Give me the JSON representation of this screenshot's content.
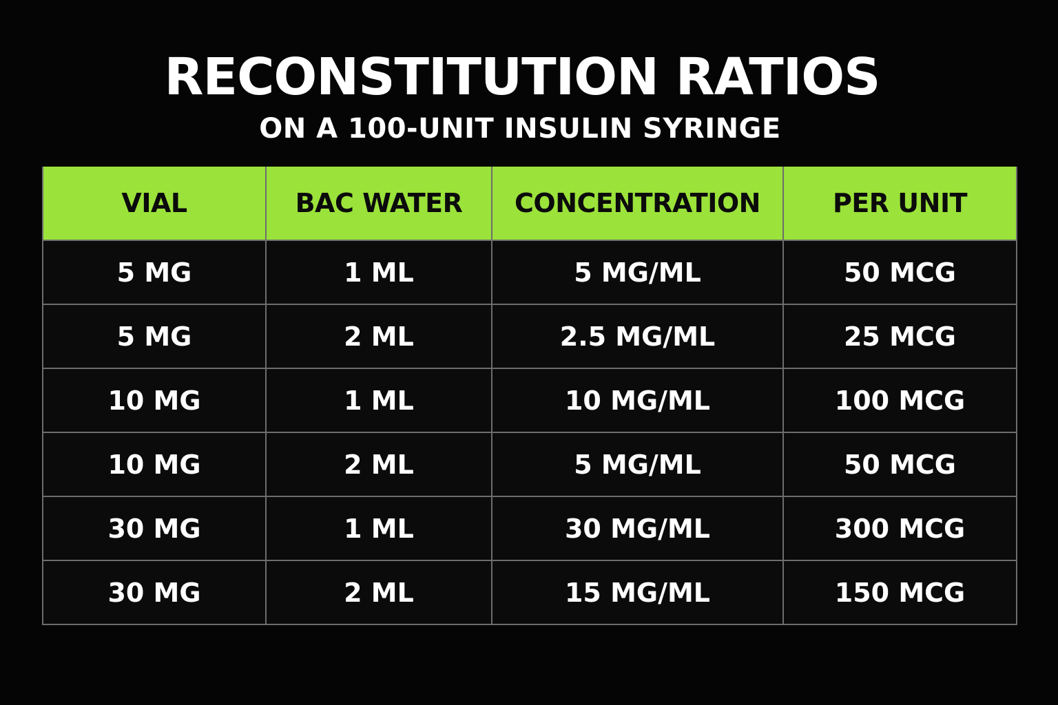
{
  "header": {
    "title": "RECONSTITUTION RATIOS",
    "subtitle": "ON A 100-UNIT INSULIN SYRINGE"
  },
  "table": {
    "columns": [
      "VIAL",
      "BAC WATER",
      "CONCENTRATION",
      "PER UNIT"
    ],
    "rows": [
      [
        "5 MG",
        "1 ML",
        "5 MG/ML",
        "50 MCG"
      ],
      [
        "5 MG",
        "2 ML",
        "2.5 MG/ML",
        "25 MCG"
      ],
      [
        "10 MG",
        "1 ML",
        "10 MG/ML",
        "100 MCG"
      ],
      [
        "10 MG",
        "2 ML",
        "5 MG/ML",
        "50 MCG"
      ],
      [
        "30 MG",
        "1 ML",
        "30 MG/ML",
        "300 MCG"
      ],
      [
        "30 MG",
        "2 ML",
        "15 MG/ML",
        "150 MCG"
      ]
    ]
  },
  "colors": {
    "background": "#050505",
    "header_accent": "#9be23a",
    "grid_line": "#6d6d6d",
    "text": "#ffffff"
  }
}
